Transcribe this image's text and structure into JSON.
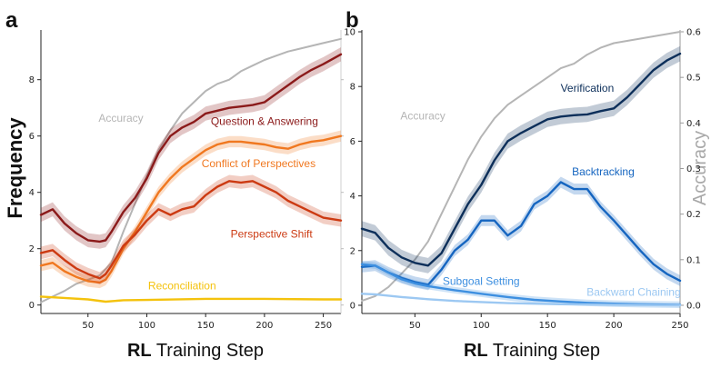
{
  "panels": [
    {
      "letter": "a",
      "ylabel": "Frequency",
      "xlabel_bold": "RL",
      "xlabel_rest": " Training Step"
    },
    {
      "letter": "b",
      "ylabel_right": "Accuracy",
      "xlabel_bold": "RL",
      "xlabel_rest": " Training Step"
    }
  ],
  "chart_data": [
    {
      "type": "line",
      "panel": "a",
      "xlabel": "RL Training Step",
      "ylabel": "Frequency",
      "xlim": [
        10,
        265
      ],
      "ylim": [
        -0.3,
        9.7
      ],
      "xticks": [
        50,
        100,
        150,
        200,
        250
      ],
      "yticks": [
        0,
        2,
        4,
        6,
        8
      ],
      "grid": false,
      "secondary_axis": {
        "label": "",
        "note": "right spine without labels"
      },
      "series": [
        {
          "name": "Question & Answering",
          "color": "#8b1a1a",
          "x": [
            10,
            20,
            30,
            40,
            50,
            60,
            65,
            70,
            80,
            90,
            100,
            110,
            120,
            130,
            140,
            150,
            160,
            170,
            180,
            190,
            200,
            210,
            220,
            230,
            240,
            250,
            265
          ],
          "y": [
            3.2,
            3.4,
            2.9,
            2.55,
            2.3,
            2.25,
            2.3,
            2.6,
            3.3,
            3.8,
            4.5,
            5.4,
            6.0,
            6.3,
            6.5,
            6.8,
            6.9,
            7.0,
            7.05,
            7.1,
            7.2,
            7.5,
            7.8,
            8.1,
            8.35,
            8.55,
            8.9
          ],
          "band": 0.25
        },
        {
          "name": "Conflict of Perspectives",
          "color": "#f07820",
          "x": [
            10,
            20,
            30,
            40,
            50,
            60,
            65,
            70,
            80,
            90,
            100,
            110,
            120,
            130,
            140,
            150,
            160,
            170,
            180,
            190,
            200,
            210,
            220,
            230,
            240,
            250,
            265
          ],
          "y": [
            1.4,
            1.5,
            1.2,
            1.0,
            0.85,
            0.8,
            0.9,
            1.2,
            2.0,
            2.6,
            3.3,
            4.0,
            4.5,
            4.9,
            5.2,
            5.5,
            5.7,
            5.8,
            5.8,
            5.75,
            5.7,
            5.6,
            5.55,
            5.7,
            5.8,
            5.85,
            6.0
          ],
          "band": 0.2
        },
        {
          "name": "Perspective Shift",
          "color": "#cc3a12",
          "x": [
            10,
            20,
            30,
            40,
            50,
            60,
            65,
            70,
            80,
            90,
            100,
            110,
            120,
            130,
            140,
            150,
            160,
            170,
            180,
            190,
            200,
            210,
            220,
            230,
            240,
            250,
            265
          ],
          "y": [
            1.85,
            1.95,
            1.6,
            1.3,
            1.1,
            0.95,
            1.1,
            1.4,
            2.1,
            2.5,
            3.0,
            3.4,
            3.2,
            3.4,
            3.5,
            3.9,
            4.2,
            4.4,
            4.35,
            4.4,
            4.2,
            4.0,
            3.7,
            3.5,
            3.3,
            3.1,
            3.0
          ],
          "band": 0.22
        },
        {
          "name": "Reconciliation",
          "color": "#f4c20d",
          "x": [
            10,
            30,
            50,
            65,
            80,
            100,
            150,
            200,
            250,
            265
          ],
          "y": [
            0.3,
            0.25,
            0.2,
            0.12,
            0.17,
            0.18,
            0.22,
            0.22,
            0.2,
            0.2
          ],
          "band": 0.03
        },
        {
          "name": "Accuracy",
          "color": "#b5b5b5",
          "axis": "right",
          "x": [
            10,
            20,
            30,
            40,
            50,
            60,
            70,
            80,
            90,
            100,
            110,
            120,
            130,
            140,
            150,
            160,
            170,
            180,
            190,
            200,
            210,
            220,
            230,
            240,
            250,
            265
          ],
          "y": [
            0.1,
            0.3,
            0.5,
            0.75,
            0.9,
            1.05,
            1.5,
            2.6,
            3.6,
            4.6,
            5.5,
            6.2,
            6.8,
            7.2,
            7.6,
            7.85,
            8.0,
            8.3,
            8.5,
            8.7,
            8.85,
            9.0,
            9.1,
            9.2,
            9.3,
            9.45
          ],
          "band": 0
        }
      ]
    },
    {
      "type": "line",
      "panel": "b",
      "xlabel": "RL Training Step",
      "ylabel": "",
      "ylabel_right": "Accuracy",
      "xlim": [
        10,
        250
      ],
      "ylim": [
        -0.3,
        10
      ],
      "y2lim": [
        -0.018,
        0.6
      ],
      "xticks": [
        50,
        100,
        150,
        200,
        250
      ],
      "yticks": [
        0,
        2,
        4,
        6,
        8,
        10
      ],
      "y2ticks": [
        0.0,
        0.1,
        0.2,
        0.3,
        0.4,
        0.5,
        0.6
      ],
      "y2ticklabels": [
        "0.0",
        "0.1",
        "0.2",
        "0.3",
        "0.4",
        "0.5",
        "0.6"
      ],
      "grid": false,
      "series": [
        {
          "name": "Verification",
          "color": "#0d2f5a",
          "x": [
            10,
            20,
            30,
            40,
            50,
            60,
            70,
            80,
            90,
            100,
            110,
            120,
            130,
            140,
            150,
            160,
            170,
            180,
            190,
            200,
            210,
            220,
            230,
            240,
            250
          ],
          "y": [
            2.8,
            2.65,
            2.1,
            1.75,
            1.55,
            1.45,
            1.9,
            2.8,
            3.7,
            4.4,
            5.3,
            6.0,
            6.3,
            6.55,
            6.8,
            6.9,
            6.95,
            6.98,
            7.1,
            7.2,
            7.6,
            8.1,
            8.6,
            8.95,
            9.2
          ],
          "band": 0.28
        },
        {
          "name": "Backtracking",
          "color": "#1565c0",
          "x": [
            10,
            20,
            30,
            40,
            50,
            60,
            70,
            80,
            90,
            100,
            110,
            120,
            130,
            140,
            150,
            160,
            170,
            180,
            190,
            200,
            210,
            220,
            230,
            240,
            250
          ],
          "y": [
            1.4,
            1.45,
            1.2,
            1.0,
            0.85,
            0.75,
            1.3,
            2.0,
            2.4,
            3.1,
            3.1,
            2.55,
            2.9,
            3.7,
            4.0,
            4.5,
            4.25,
            4.25,
            3.6,
            3.1,
            2.55,
            2.0,
            1.5,
            1.15,
            0.9
          ],
          "band": 0.2
        },
        {
          "name": "Subgoal Setting",
          "color": "#3d8fe0",
          "x": [
            10,
            20,
            30,
            40,
            50,
            60,
            80,
            100,
            120,
            140,
            160,
            180,
            200,
            220,
            250
          ],
          "y": [
            1.5,
            1.45,
            1.2,
            0.95,
            0.8,
            0.7,
            0.55,
            0.42,
            0.3,
            0.2,
            0.14,
            0.09,
            0.06,
            0.04,
            0.02
          ],
          "band": 0.12
        },
        {
          "name": "Backward Chaining",
          "color": "#9cc8f2",
          "x": [
            10,
            20,
            30,
            40,
            50,
            60,
            80,
            100,
            120,
            140,
            160,
            180,
            200,
            220,
            250
          ],
          "y": [
            0.42,
            0.4,
            0.35,
            0.3,
            0.26,
            0.22,
            0.16,
            0.12,
            0.08,
            0.06,
            0.04,
            0.03,
            0.02,
            0.01,
            0.0
          ],
          "band": 0.03
        },
        {
          "name": "Accuracy",
          "color": "#b5b5b5",
          "axis": "right",
          "x": [
            10,
            20,
            30,
            40,
            50,
            60,
            70,
            80,
            90,
            100,
            110,
            120,
            130,
            140,
            150,
            160,
            170,
            180,
            190,
            200,
            210,
            220,
            230,
            240,
            250
          ],
          "y": [
            0.01,
            0.02,
            0.04,
            0.07,
            0.1,
            0.14,
            0.2,
            0.26,
            0.32,
            0.37,
            0.41,
            0.44,
            0.46,
            0.48,
            0.5,
            0.52,
            0.53,
            0.55,
            0.565,
            0.575,
            0.58,
            0.585,
            0.59,
            0.595,
            0.6
          ],
          "band": 0
        }
      ]
    }
  ],
  "labels": {
    "a": [
      {
        "text": "Accuracy",
        "color": "#b5b5b5",
        "x": 78,
        "y": 6.5
      },
      {
        "text": "Question & Answering",
        "color": "#8b1a1a",
        "x": 200,
        "y": 6.4
      },
      {
        "text": "Conflict of Perspectives",
        "color": "#f07820",
        "x": 195,
        "y": 4.9
      },
      {
        "text": "Perspective Shift",
        "color": "#cc3a12",
        "x": 206,
        "y": 2.4
      },
      {
        "text": "Reconciliation",
        "color": "#f4c20d",
        "x": 130,
        "y": 0.55
      }
    ],
    "b": [
      {
        "text": "Accuracy",
        "color": "#b5b5b5",
        "x": 56,
        "y": 6.8
      },
      {
        "text": "Verification",
        "color": "#0d2f5a",
        "x": 180,
        "y": 7.8
      },
      {
        "text": "Backtracking",
        "color": "#1565c0",
        "x": 192,
        "y": 4.75
      },
      {
        "text": "Subgoal Setting",
        "color": "#3d8fe0",
        "x": 100,
        "y": 0.75
      },
      {
        "text": "Backward Chaining",
        "color": "#9cc8f2",
        "x": 215,
        "y": 0.35
      }
    ]
  }
}
